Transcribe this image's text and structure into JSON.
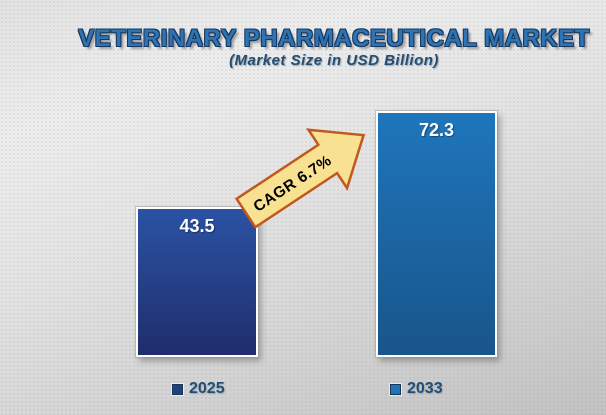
{
  "title": "VETERINARY PHARMACEUTICAL MARKET",
  "subtitle": "(Market Size in USD Billion)",
  "arrow": {
    "label": "CAGR 6.7%"
  },
  "chart_data": {
    "type": "bar",
    "title": "VETERINARY PHARMACEUTICAL MARKET",
    "subtitle": "(Market Size in USD Billion)",
    "categories": [
      "2025",
      "2033"
    ],
    "values": [
      43.5,
      72.3
    ],
    "value_labels": [
      "43.5",
      "72.3"
    ],
    "annotation": "CAGR 6.7%",
    "ylim": [
      0,
      80
    ],
    "grid": false,
    "axes_shown": false,
    "legend_position": "bottom",
    "bar_colors": [
      {
        "top": "#2b52a4",
        "bottom": "#1f2e6b"
      },
      {
        "top": "#1e76bc",
        "bottom": "#19558a"
      }
    ]
  },
  "legend": {
    "items": [
      {
        "label": "2025",
        "marker_color": "#24407e"
      },
      {
        "label": "2033",
        "marker_color": "#2173b8"
      }
    ]
  },
  "colors": {
    "title_fill": "#2e74b5",
    "title_outline": "#17375e",
    "subtitle_text": "#1f4e79",
    "value_label_text": "#ffffff",
    "arrow_fill": "#f8e292",
    "arrow_border": "#c2571f",
    "arrow_text": "#000000",
    "legend_text": "#1f4e79",
    "background_light": "#ededed",
    "background_dark": "#c2c2c2"
  }
}
